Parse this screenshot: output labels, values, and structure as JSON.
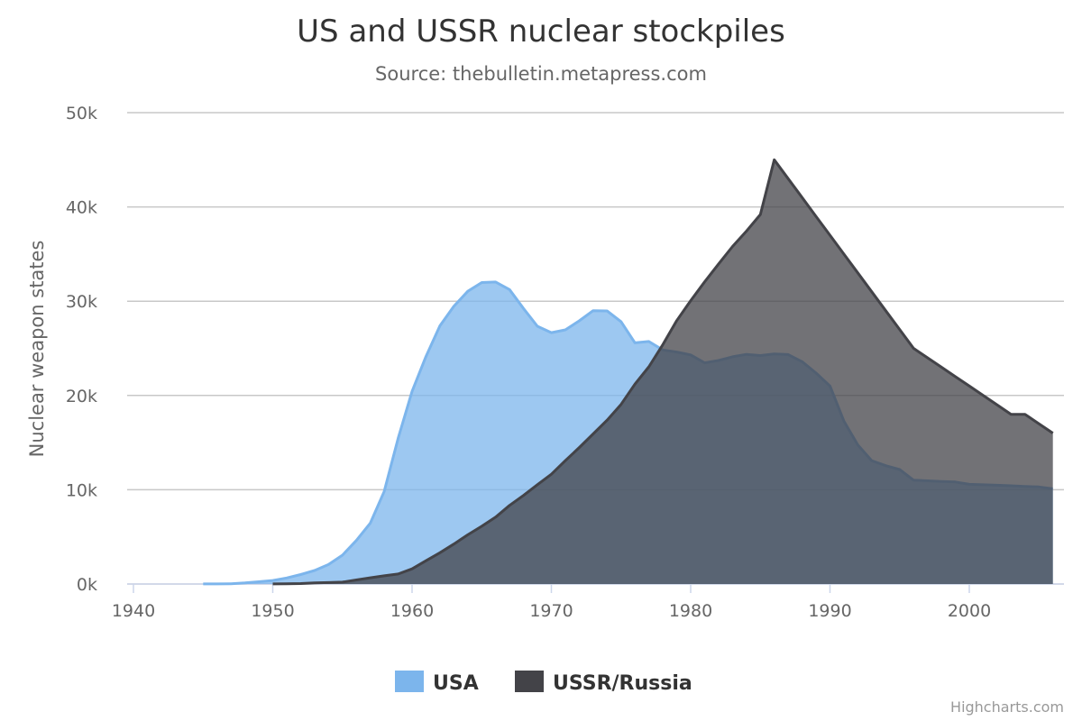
{
  "chart_data": {
    "type": "area",
    "title": "US and USSR nuclear stockpiles",
    "subtitle": "Source: thebulletin.metapress.com",
    "xlabel": "",
    "ylabel": "Nuclear weapon states",
    "xlim": [
      1940,
      2006
    ],
    "ylim": [
      0,
      50000
    ],
    "x_ticks": [
      "1940",
      "1950",
      "1960",
      "1970",
      "1980",
      "1990",
      "2000"
    ],
    "y_ticks": [
      "0k",
      "10k",
      "20k",
      "30k",
      "40k",
      "50k"
    ],
    "grid": true,
    "legend_position": "bottom",
    "x_start": 1940,
    "series": [
      {
        "name": "USA",
        "color": "#7cb5ec",
        "values": [
          null,
          null,
          null,
          null,
          null,
          6,
          11,
          32,
          110,
          235,
          369,
          640,
          1005,
          1436,
          2063,
          3057,
          4618,
          6444,
          9822,
          15468,
          20434,
          24126,
          27387,
          29459,
          31056,
          31982,
          32040,
          31233,
          29224,
          27342,
          26662,
          26956,
          27912,
          28999,
          28965,
          27826,
          25579,
          25722,
          24826,
          24605,
          24304,
          23464,
          23708,
          24099,
          24357,
          24237,
          24401,
          24344,
          23586,
          22380,
          21004,
          17287,
          14747,
          13076,
          12555,
          12144,
          11009,
          10950,
          10871,
          10824,
          10577,
          10527,
          10475,
          10421,
          10358,
          10295,
          10104
        ]
      },
      {
        "name": "USSR/Russia",
        "color": "#434348",
        "values": [
          null,
          null,
          null,
          null,
          null,
          null,
          null,
          null,
          null,
          null,
          5,
          25,
          50,
          120,
          150,
          200,
          426,
          660,
          869,
          1060,
          1605,
          2471,
          3322,
          4238,
          5221,
          6129,
          7089,
          8339,
          9399,
          10538,
          11643,
          13092,
          14478,
          15915,
          17385,
          19055,
          21205,
          23044,
          25393,
          27935,
          30062,
          32049,
          33952,
          35804,
          37431,
          39197,
          45000,
          43000,
          41000,
          39000,
          37000,
          35000,
          33000,
          31000,
          29000,
          27000,
          25000,
          24000,
          23000,
          22000,
          21000,
          20000,
          19000,
          18000,
          18000,
          17000,
          16000
        ]
      }
    ]
  },
  "credit": "Highcharts.com"
}
